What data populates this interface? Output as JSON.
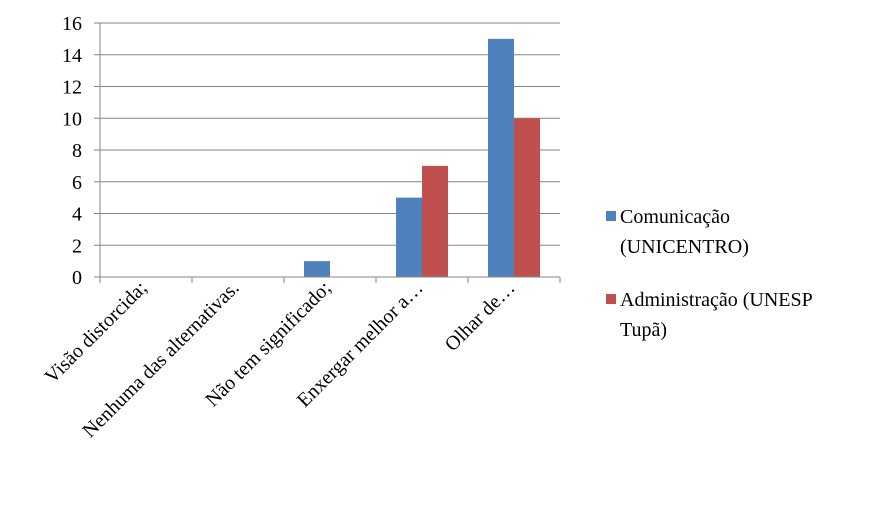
{
  "chart_data": {
    "type": "bar",
    "title": "",
    "xlabel": "",
    "ylabel": "",
    "ylim": [
      0,
      16
    ],
    "yticks": [
      0,
      2,
      4,
      6,
      8,
      10,
      12,
      14,
      16
    ],
    "grid": true,
    "legend_position": "right",
    "categories": [
      "Visão distorcida;",
      "Nenhuma das alternativas.",
      "Não tem significado;",
      "Enxergar melhor a…",
      "Olhar de…"
    ],
    "series": [
      {
        "name": "Comunicação (UNICENTRO)",
        "color": "#4f81bd",
        "values": [
          0,
          0,
          1,
          5,
          15
        ]
      },
      {
        "name": "Administração (UNESP Tupã)",
        "color": "#c0504d",
        "values": [
          0,
          0,
          0,
          7,
          10
        ]
      }
    ],
    "legend_lines": [
      [
        "Comunicação",
        "(UNICENTRO)"
      ],
      [
        "Administração (UNESP",
        "Tupã)"
      ]
    ]
  }
}
